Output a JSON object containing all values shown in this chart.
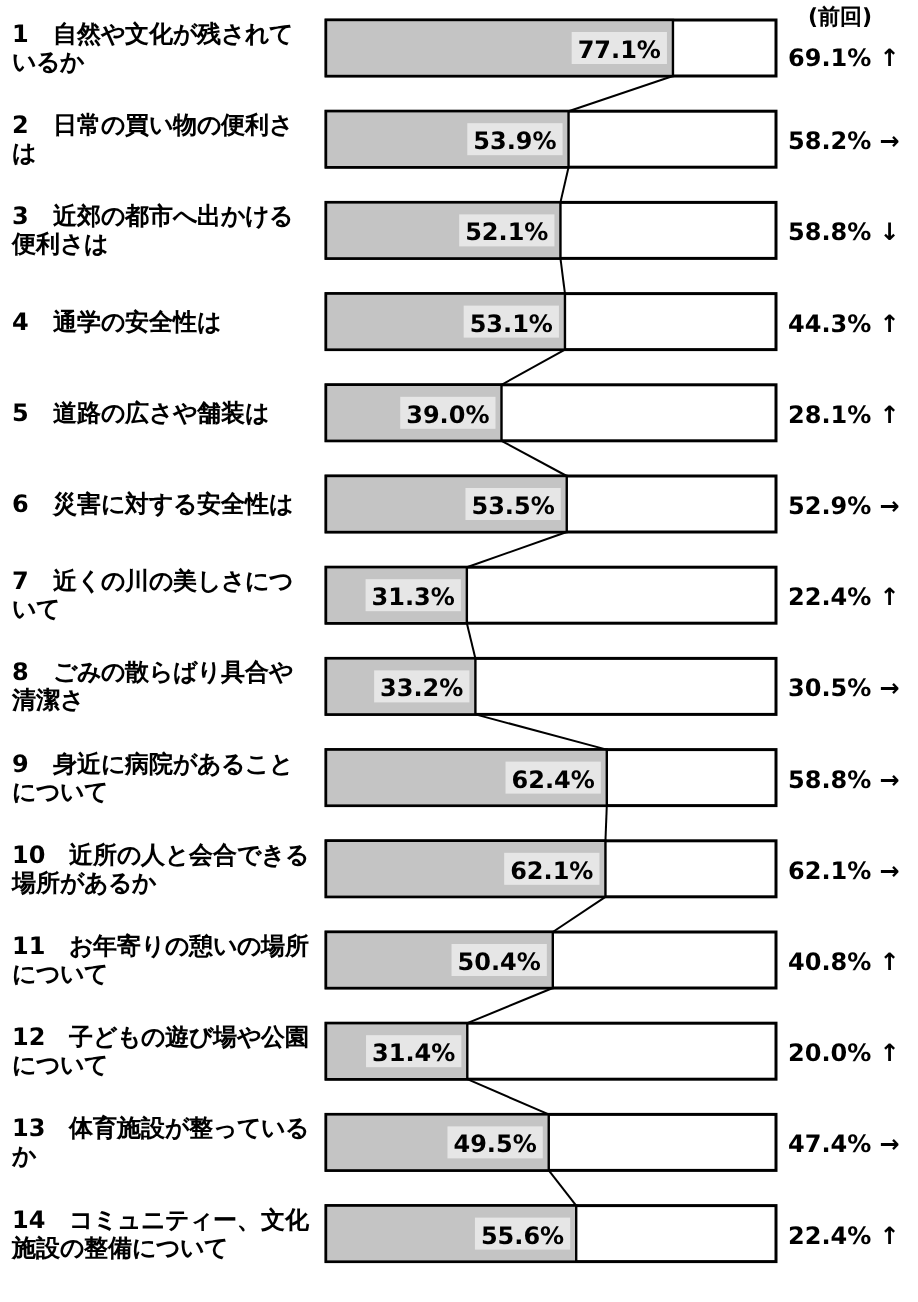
{
  "chart_data": {
    "type": "bar",
    "orientation": "horizontal",
    "xlim": [
      0,
      100
    ],
    "color": "#c4c4c4",
    "categories": [
      "1　自然や文化が残されているか",
      "2　日常の買い物の便利さは",
      "3　近郊の都市へ出かける便利さは",
      "4　通学の安全性は",
      "5　道路の広さや舗装は",
      "6　災害に対する安全性は",
      "7　近くの川の美しさについて",
      "8　ごみの散らばり具合や清潔さ",
      "9　身近に病院があることについて",
      "10　近所の人と会合できる場所があるか",
      "11　お年寄りの憩いの場所について",
      "12　子どもの遊び場や公園について",
      "13　体育施設が整っているか",
      "14　コミュニティー、文化施設の整備について"
    ],
    "values": [
      77.1,
      53.9,
      52.1,
      53.1,
      39.0,
      53.5,
      31.3,
      33.2,
      62.4,
      62.1,
      50.4,
      31.4,
      49.5,
      55.6
    ],
    "value_labels": [
      "77.1%",
      "53.9%",
      "52.1%",
      "53.1%",
      "39.0%",
      "53.5%",
      "31.3%",
      "33.2%",
      "62.4%",
      "62.1%",
      "50.4%",
      "31.4%",
      "49.5%",
      "55.6%"
    ],
    "annotations": [
      "(前回)",
      "69.1% ↑",
      "58.2% →",
      "58.8% ↓",
      "44.3% ↑",
      "28.1% ↑",
      "52.9% →",
      "22.4% ↑",
      "30.5% →",
      "58.8% →",
      "62.1% →",
      "40.8% ↑",
      "20.0% ↑",
      "47.4% →",
      "22.4% ↑"
    ]
  }
}
